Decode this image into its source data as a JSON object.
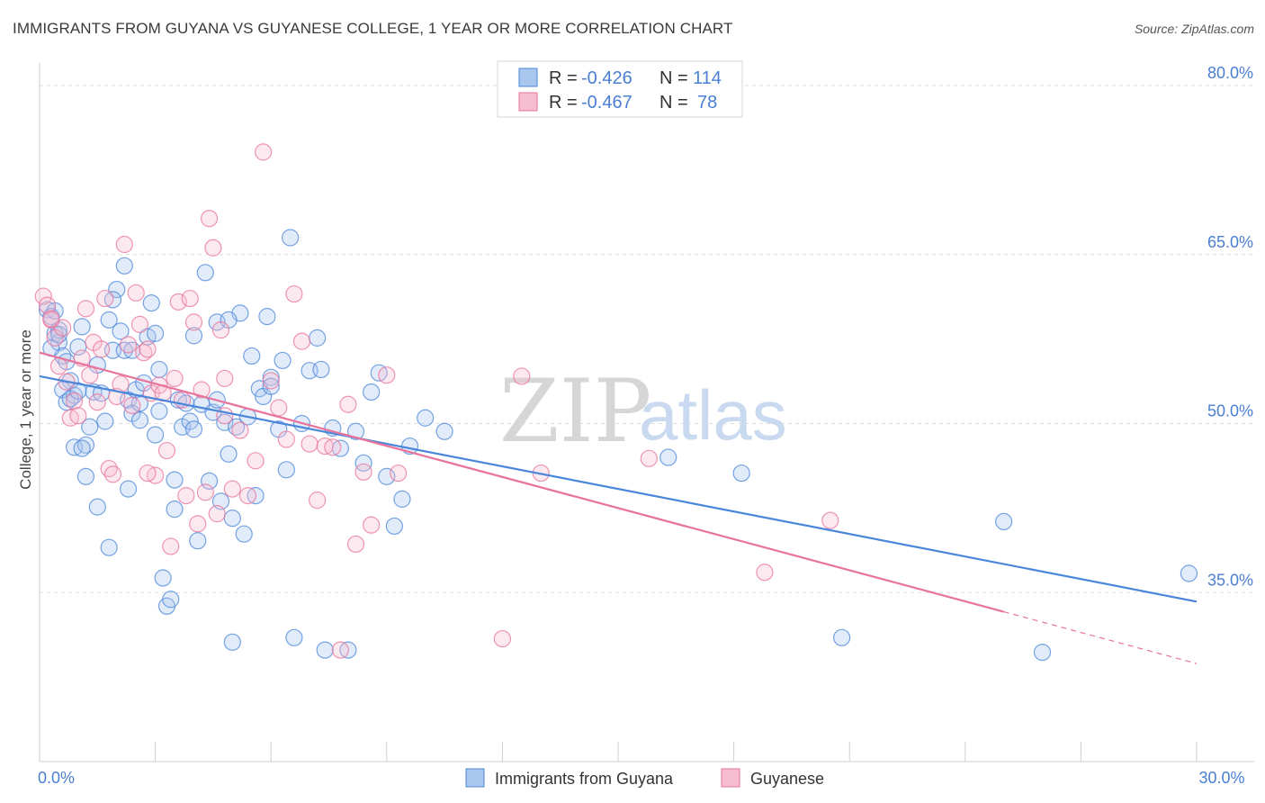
{
  "title": "IMMIGRANTS FROM GUYANA VS GUYANESE COLLEGE, 1 YEAR OR MORE CORRELATION CHART",
  "source": "Source: ZipAtlas.com",
  "watermark": {
    "zip": "ZIP",
    "atlas": "atlas"
  },
  "colors": {
    "blue": "#4a86d9",
    "pink": "#e8739b",
    "blue_fill": "#a9c7ee",
    "pink_fill": "#f6bcd0"
  },
  "legend": {
    "rows": [
      {
        "r_label": "R = ",
        "r_value": "-0.426",
        "n_label": "N = ",
        "n_value": "114"
      },
      {
        "r_label": "R = ",
        "r_value": "-0.467",
        "n_label": "N = ",
        "n_value": "78"
      }
    ]
  },
  "chart_data": {
    "type": "scatter",
    "ylabel": "College, 1 year or more",
    "xlim": [
      0,
      30
    ],
    "ylim": [
      20,
      82
    ],
    "x_tick_labels": [
      {
        "value": 0,
        "label": "0.0%"
      },
      {
        "value": 30,
        "label": "30.0%"
      }
    ],
    "y_tick_labels": [
      {
        "value": 80,
        "label": "80.0%"
      },
      {
        "value": 65,
        "label": "65.0%"
      },
      {
        "value": 50,
        "label": "50.0%"
      },
      {
        "value": 35,
        "label": "35.0%"
      }
    ],
    "series": [
      {
        "name": "Immigrants from Guyana",
        "color": "#4a86d9",
        "trend": {
          "x0": 0,
          "y0": 54.2,
          "x1": 30,
          "y1": 34.2
        },
        "points": [
          [
            0.2,
            60.1
          ],
          [
            0.3,
            59.5
          ],
          [
            0.4,
            58.0
          ],
          [
            0.5,
            57.2
          ],
          [
            0.6,
            56.0
          ],
          [
            0.7,
            55.5
          ],
          [
            0.8,
            53.8
          ],
          [
            0.6,
            53.0
          ],
          [
            0.7,
            51.9
          ],
          [
            0.9,
            52.5
          ],
          [
            1.0,
            56.8
          ],
          [
            1.1,
            58.6
          ],
          [
            0.9,
            47.9
          ],
          [
            1.2,
            48.1
          ],
          [
            1.3,
            49.7
          ],
          [
            1.4,
            52.8
          ],
          [
            1.2,
            45.3
          ],
          [
            1.5,
            42.6
          ],
          [
            1.6,
            52.7
          ],
          [
            1.7,
            50.2
          ],
          [
            1.8,
            59.2
          ],
          [
            1.9,
            56.5
          ],
          [
            1.8,
            39.0
          ],
          [
            2.0,
            61.9
          ],
          [
            1.9,
            61.0
          ],
          [
            2.1,
            58.2
          ],
          [
            2.2,
            56.5
          ],
          [
            2.3,
            52.1
          ],
          [
            2.4,
            50.9
          ],
          [
            2.5,
            53.0
          ],
          [
            2.3,
            44.2
          ],
          [
            2.2,
            64.0
          ],
          [
            2.6,
            51.8
          ],
          [
            2.7,
            53.6
          ],
          [
            2.8,
            57.7
          ],
          [
            2.9,
            60.7
          ],
          [
            3.0,
            58.0
          ],
          [
            3.1,
            54.8
          ],
          [
            3.0,
            49.0
          ],
          [
            3.2,
            36.3
          ],
          [
            3.3,
            33.8
          ],
          [
            3.4,
            34.4
          ],
          [
            3.5,
            45.0
          ],
          [
            3.6,
            52.1
          ],
          [
            3.7,
            49.7
          ],
          [
            3.8,
            51.8
          ],
          [
            3.9,
            50.2
          ],
          [
            4.0,
            57.8
          ],
          [
            4.1,
            39.6
          ],
          [
            4.2,
            51.7
          ],
          [
            4.3,
            63.4
          ],
          [
            4.4,
            44.9
          ],
          [
            4.5,
            51.0
          ],
          [
            4.6,
            59.0
          ],
          [
            4.7,
            43.1
          ],
          [
            4.8,
            50.1
          ],
          [
            4.9,
            47.3
          ],
          [
            5.0,
            41.6
          ],
          [
            5.1,
            49.7
          ],
          [
            5.2,
            59.8
          ],
          [
            5.3,
            40.2
          ],
          [
            5.4,
            50.6
          ],
          [
            5.5,
            56.0
          ],
          [
            5.6,
            43.6
          ],
          [
            5.7,
            53.1
          ],
          [
            5.8,
            52.4
          ],
          [
            5.9,
            59.5
          ],
          [
            6.0,
            54.1
          ],
          [
            6.2,
            49.5
          ],
          [
            6.3,
            55.6
          ],
          [
            6.4,
            45.9
          ],
          [
            6.5,
            66.5
          ],
          [
            6.8,
            50.0
          ],
          [
            7.0,
            54.7
          ],
          [
            7.2,
            57.6
          ],
          [
            7.4,
            29.9
          ],
          [
            7.6,
            49.6
          ],
          [
            7.8,
            47.8
          ],
          [
            8.0,
            29.9
          ],
          [
            8.2,
            49.3
          ],
          [
            8.4,
            46.5
          ],
          [
            8.6,
            52.8
          ],
          [
            8.8,
            54.5
          ],
          [
            9.0,
            45.3
          ],
          [
            9.2,
            40.9
          ],
          [
            9.4,
            43.3
          ],
          [
            9.6,
            48.0
          ],
          [
            10.0,
            50.5
          ],
          [
            10.5,
            49.3
          ],
          [
            4.9,
            59.2
          ],
          [
            3.5,
            42.4
          ],
          [
            2.6,
            50.3
          ],
          [
            1.5,
            55.2
          ],
          [
            0.4,
            60.0
          ],
          [
            0.5,
            58.3
          ],
          [
            6.0,
            53.3
          ],
          [
            4.6,
            52.1
          ],
          [
            16.3,
            47.0
          ],
          [
            18.2,
            45.6
          ],
          [
            20.8,
            31.0
          ],
          [
            25.0,
            41.3
          ],
          [
            26.0,
            29.7
          ],
          [
            29.8,
            36.7
          ],
          [
            5.0,
            30.6
          ],
          [
            6.6,
            31.0
          ],
          [
            0.3,
            56.7
          ],
          [
            0.8,
            52.2
          ],
          [
            1.1,
            47.8
          ],
          [
            2.4,
            56.5
          ],
          [
            3.1,
            51.1
          ],
          [
            0.5,
            57.9
          ],
          [
            1.0,
            52.9
          ],
          [
            4.0,
            49.5
          ],
          [
            7.3,
            54.8
          ]
        ]
      },
      {
        "name": "Guyanese",
        "color": "#e8739b",
        "trend": {
          "x0": 0,
          "y0": 56.3,
          "x1": 25.0,
          "y1": 33.3,
          "dash_x1": 30,
          "dash_y1": 28.7
        },
        "points": [
          [
            0.1,
            61.3
          ],
          [
            0.2,
            60.5
          ],
          [
            0.3,
            59.2
          ],
          [
            0.4,
            57.6
          ],
          [
            0.5,
            55.1
          ],
          [
            0.6,
            58.5
          ],
          [
            0.7,
            53.7
          ],
          [
            0.8,
            50.5
          ],
          [
            0.9,
            52.0
          ],
          [
            1.0,
            50.7
          ],
          [
            1.1,
            55.8
          ],
          [
            1.2,
            60.2
          ],
          [
            1.3,
            54.3
          ],
          [
            1.4,
            57.2
          ],
          [
            1.5,
            51.9
          ],
          [
            1.6,
            56.6
          ],
          [
            1.7,
            61.1
          ],
          [
            1.8,
            46.0
          ],
          [
            1.9,
            45.5
          ],
          [
            2.0,
            52.4
          ],
          [
            2.1,
            53.5
          ],
          [
            2.2,
            65.9
          ],
          [
            2.3,
            57.0
          ],
          [
            2.4,
            51.6
          ],
          [
            2.5,
            61.6
          ],
          [
            2.6,
            58.8
          ],
          [
            2.7,
            56.3
          ],
          [
            2.8,
            56.6
          ],
          [
            2.9,
            52.7
          ],
          [
            3.0,
            45.4
          ],
          [
            3.1,
            53.4
          ],
          [
            3.2,
            52.7
          ],
          [
            3.3,
            47.6
          ],
          [
            3.4,
            39.1
          ],
          [
            3.5,
            54.0
          ],
          [
            3.6,
            60.8
          ],
          [
            3.7,
            52.1
          ],
          [
            3.8,
            43.6
          ],
          [
            3.9,
            61.1
          ],
          [
            4.0,
            59.0
          ],
          [
            4.1,
            41.1
          ],
          [
            4.2,
            53.0
          ],
          [
            4.3,
            43.9
          ],
          [
            4.4,
            68.2
          ],
          [
            4.5,
            65.6
          ],
          [
            4.6,
            42.0
          ],
          [
            4.7,
            58.3
          ],
          [
            4.8,
            54.0
          ],
          [
            5.0,
            44.2
          ],
          [
            5.2,
            49.4
          ],
          [
            5.4,
            43.6
          ],
          [
            5.6,
            46.7
          ],
          [
            5.8,
            74.1
          ],
          [
            6.0,
            53.8
          ],
          [
            6.2,
            51.4
          ],
          [
            6.4,
            48.6
          ],
          [
            6.6,
            61.5
          ],
          [
            6.8,
            57.3
          ],
          [
            7.0,
            48.2
          ],
          [
            7.2,
            43.2
          ],
          [
            7.4,
            48.0
          ],
          [
            7.6,
            47.9
          ],
          [
            7.8,
            29.9
          ],
          [
            8.0,
            51.7
          ],
          [
            8.2,
            39.3
          ],
          [
            8.4,
            45.7
          ],
          [
            8.6,
            41.0
          ],
          [
            9.0,
            54.3
          ],
          [
            9.3,
            45.6
          ],
          [
            12.5,
            54.2
          ],
          [
            13.0,
            45.6
          ],
          [
            12.0,
            30.9
          ],
          [
            15.8,
            46.9
          ],
          [
            18.8,
            36.8
          ],
          [
            20.5,
            41.4
          ],
          [
            4.8,
            50.7
          ],
          [
            0.3,
            59.3
          ],
          [
            2.8,
            45.6
          ]
        ]
      }
    ]
  },
  "bottom_legend": [
    {
      "label": "Immigrants from Guyana"
    },
    {
      "label": "Guyanese"
    }
  ]
}
